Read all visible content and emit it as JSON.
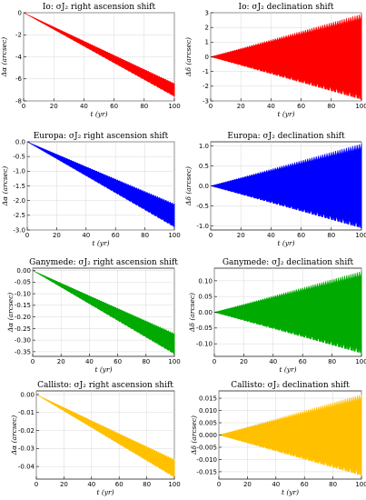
{
  "chart_data": [
    {
      "id": "io-ra",
      "type": "area",
      "title": "Io: σJ₂ right ascension shift",
      "xlabel": "t (yr)",
      "ylabel": "Δα (arcsec)",
      "xlim": [
        0,
        100
      ],
      "ylim": [
        -8,
        0
      ],
      "xticks": [
        0,
        20,
        40,
        60,
        80,
        100
      ],
      "yticks": [
        0,
        -2,
        -4,
        -6,
        -8
      ],
      "color": "#ff0000",
      "grid": true,
      "shape": "trend",
      "envelope": {
        "t": [
          0,
          100
        ],
        "upper": [
          0,
          -6.4
        ],
        "lower": [
          0,
          -7.6
        ]
      }
    },
    {
      "id": "io-dec",
      "type": "area",
      "title": "Io: σJ₂ declination shift",
      "xlabel": "t (yr)",
      "ylabel": "Δδ (arcsec)",
      "xlim": [
        0,
        100
      ],
      "ylim": [
        -3,
        3
      ],
      "xticks": [
        0,
        20,
        40,
        60,
        80,
        100
      ],
      "yticks": [
        3,
        2,
        1,
        0,
        -1,
        -2,
        -3
      ],
      "color": "#ff0000",
      "grid": true,
      "shape": "fan",
      "envelope": {
        "t": [
          0,
          100
        ],
        "upper": [
          0,
          2.9
        ],
        "lower": [
          0,
          -2.9
        ]
      }
    },
    {
      "id": "europa-ra",
      "type": "area",
      "title": "Europa: σJ₂ right ascension shift",
      "xlabel": "t (yr)",
      "ylabel": "Δα (arcsec)",
      "xlim": [
        0,
        100
      ],
      "ylim": [
        -3,
        0
      ],
      "xticks": [
        0,
        20,
        40,
        60,
        80,
        100
      ],
      "yticks": [
        0,
        -0.5,
        -1.0,
        -1.5,
        -2.0,
        -2.5,
        -3.0
      ],
      "ytick_labels": [
        "0.0",
        "-0.5",
        "-1.0",
        "-1.5",
        "-2.0",
        "-2.5",
        "-3.0"
      ],
      "color": "#0000ff",
      "grid": true,
      "shape": "trend",
      "envelope": {
        "t": [
          0,
          100
        ],
        "upper": [
          0,
          -2.1
        ],
        "lower": [
          0,
          -2.9
        ]
      }
    },
    {
      "id": "europa-dec",
      "type": "area",
      "title": "Europa: σJ₂ declination shift",
      "xlabel": "t (yr)",
      "ylabel": "Δδ (arcsec)",
      "xlim": [
        0,
        100
      ],
      "ylim": [
        -1.1,
        1.1
      ],
      "xticks": [
        0,
        20,
        40,
        60,
        80,
        100
      ],
      "yticks": [
        1.0,
        0.5,
        0,
        -0.5,
        -1.0
      ],
      "ytick_labels": [
        "1.0",
        "0.5",
        "0.0",
        "-0.5",
        "-1.0"
      ],
      "color": "#0000ff",
      "grid": true,
      "shape": "fan",
      "envelope": {
        "t": [
          0,
          100
        ],
        "upper": [
          0,
          1.05
        ],
        "lower": [
          0,
          -1.05
        ]
      }
    },
    {
      "id": "ganymede-ra",
      "type": "area",
      "title": "Ganymede: σJ₂ right ascension shift",
      "xlabel": "t (yr)",
      "ylabel": "Δα (arcsec)",
      "xlim": [
        0,
        100
      ],
      "ylim": [
        -0.37,
        0.01
      ],
      "xticks": [
        0,
        20,
        40,
        60,
        80,
        100
      ],
      "yticks": [
        0,
        -0.05,
        -0.1,
        -0.15,
        -0.2,
        -0.25,
        -0.3,
        -0.35
      ],
      "ytick_labels": [
        "0.00",
        "-0.05",
        "-0.10",
        "-0.15",
        "-0.20",
        "-0.25",
        "-0.30",
        "-0.35"
      ],
      "color": "#00aa00",
      "grid": true,
      "shape": "trend",
      "envelope": {
        "t": [
          0,
          100
        ],
        "upper": [
          0,
          -0.27
        ],
        "lower": [
          0,
          -0.36
        ]
      }
    },
    {
      "id": "ganymede-dec",
      "type": "area",
      "title": "Ganymede: σJ₂ declination shift",
      "xlabel": "t (yr)",
      "ylabel": "Δδ (arcsec)",
      "xlim": [
        0,
        100
      ],
      "ylim": [
        -0.14,
        0.14
      ],
      "xticks": [
        0,
        20,
        40,
        60,
        80,
        100
      ],
      "yticks": [
        0.1,
        0.05,
        0,
        -0.05,
        -0.1
      ],
      "ytick_labels": [
        "0.10",
        "0.05",
        "0.00",
        "-0.05",
        "-0.10"
      ],
      "color": "#00aa00",
      "grid": true,
      "shape": "fan",
      "envelope": {
        "t": [
          0,
          100
        ],
        "upper": [
          0,
          0.13
        ],
        "lower": [
          0,
          -0.13
        ]
      }
    },
    {
      "id": "callisto-ra",
      "type": "area",
      "title": "Callisto: σJ₂ right ascension shift",
      "xlabel": "t (yr)",
      "ylabel": "Δα (arcsec)",
      "xlim": [
        0,
        100
      ],
      "ylim": [
        -0.047,
        0.002
      ],
      "xticks": [
        0,
        20,
        40,
        60,
        80,
        100
      ],
      "yticks": [
        0,
        -0.01,
        -0.02,
        -0.03,
        -0.04
      ],
      "ytick_labels": [
        "0.00",
        "-0.01",
        "-0.02",
        "-0.03",
        "-0.04"
      ],
      "color": "#ffc000",
      "grid": true,
      "shape": "trend",
      "envelope": {
        "t": [
          0,
          100
        ],
        "upper": [
          0,
          -0.036
        ],
        "lower": [
          0,
          -0.046
        ]
      }
    },
    {
      "id": "callisto-dec",
      "type": "area",
      "title": "Callisto: σJ₂ declination shift",
      "xlabel": "t (yr)",
      "ylabel": "Δδ (arcsec)",
      "xlim": [
        0,
        100
      ],
      "ylim": [
        -0.018,
        0.018
      ],
      "xticks": [
        0,
        20,
        40,
        60,
        80,
        100
      ],
      "yticks": [
        0.015,
        0.01,
        0.005,
        0,
        -0.005,
        -0.01,
        -0.015
      ],
      "ytick_labels": [
        "0.015",
        "0.010",
        "0.005",
        "0.000",
        "-0.005",
        "-0.010",
        "-0.015"
      ],
      "color": "#ffc000",
      "grid": true,
      "shape": "fan",
      "envelope": {
        "t": [
          0,
          100
        ],
        "upper": [
          0,
          0.0165
        ],
        "lower": [
          0,
          -0.0165
        ]
      }
    }
  ]
}
